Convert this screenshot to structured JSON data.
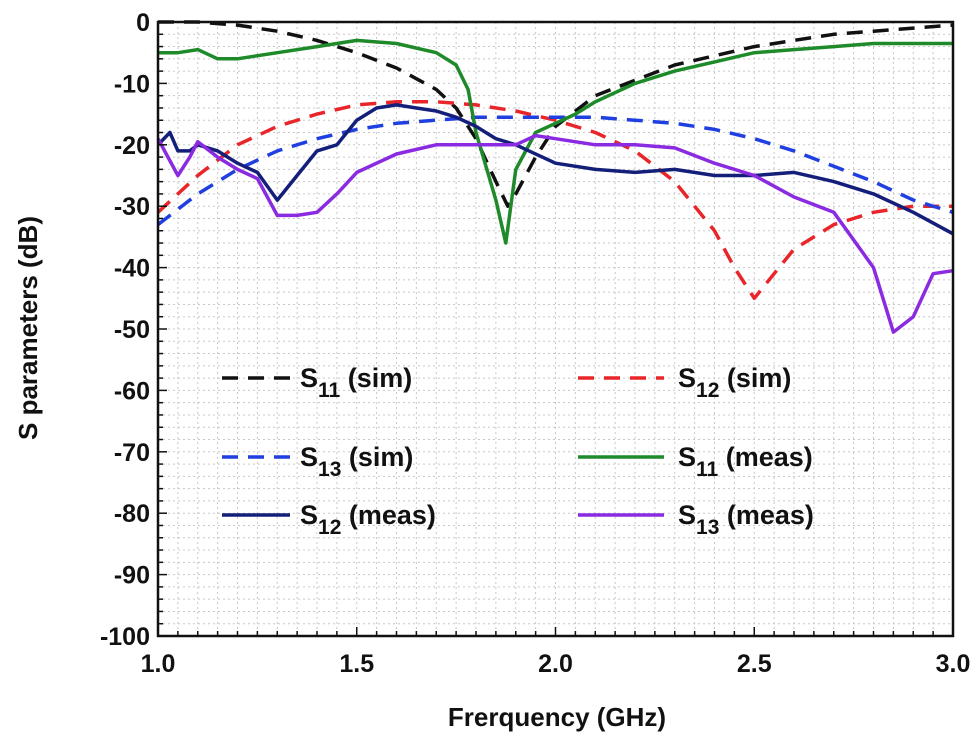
{
  "chart_data": {
    "type": "line",
    "title": "",
    "xlabel": "Frerquency (GHz)",
    "ylabel": "S parameters (dB)",
    "xlim": [
      1.0,
      3.0
    ],
    "ylim": [
      -100,
      0
    ],
    "x_ticks": [
      1.0,
      1.5,
      2.0,
      2.5,
      3.0
    ],
    "x_tick_labels": [
      "1.0",
      "1.5",
      "2.0",
      "2.5",
      "3.0"
    ],
    "y_ticks": [
      0,
      -10,
      -20,
      -30,
      -40,
      -50,
      -60,
      -70,
      -80,
      -90,
      -100
    ],
    "y_tick_labels": [
      "0",
      "-10",
      "-20",
      "-30",
      "-40",
      "-50",
      "-60",
      "-70",
      "-80",
      "-90",
      "-100"
    ],
    "grid": true,
    "legend_position": "center-lower",
    "series": [
      {
        "name": "S11 (sim)",
        "label_main": "S",
        "label_sub": "11",
        "label_tail": " (sim)",
        "color": "#111111",
        "style": "dashed",
        "x": [
          1.0,
          1.1,
          1.2,
          1.3,
          1.4,
          1.5,
          1.6,
          1.7,
          1.75,
          1.8,
          1.85,
          1.88,
          1.9,
          1.95,
          2.0,
          2.1,
          2.2,
          2.3,
          2.4,
          2.5,
          2.6,
          2.7,
          2.8,
          2.9,
          3.0
        ],
        "y": [
          0,
          0,
          -0.5,
          -1.5,
          -3,
          -5,
          -7.5,
          -11,
          -14,
          -19,
          -26,
          -30,
          -28,
          -22,
          -17,
          -12,
          -9.5,
          -7,
          -5.5,
          -4,
          -3,
          -2,
          -1.5,
          -1,
          -0.5
        ]
      },
      {
        "name": "S12 (sim)",
        "label_main": "S",
        "label_sub": "12",
        "label_tail": " (sim)",
        "color": "#e8262a",
        "style": "dashed",
        "x": [
          1.0,
          1.1,
          1.2,
          1.3,
          1.4,
          1.5,
          1.6,
          1.7,
          1.8,
          1.9,
          2.0,
          2.1,
          2.2,
          2.3,
          2.4,
          2.45,
          2.5,
          2.55,
          2.6,
          2.7,
          2.8,
          2.9,
          3.0
        ],
        "y": [
          -31,
          -25,
          -20,
          -17,
          -15,
          -13.5,
          -13,
          -13,
          -13.5,
          -14.5,
          -16,
          -18,
          -21,
          -26,
          -34,
          -40,
          -45,
          -41,
          -37,
          -33,
          -31,
          -30,
          -30
        ]
      },
      {
        "name": "S13 (sim)",
        "label_main": "S",
        "label_sub": "13",
        "label_tail": " (sim)",
        "color": "#1f3fe0",
        "style": "dashed",
        "x": [
          1.0,
          1.1,
          1.2,
          1.3,
          1.4,
          1.5,
          1.6,
          1.7,
          1.8,
          1.9,
          2.0,
          2.1,
          2.2,
          2.3,
          2.4,
          2.5,
          2.6,
          2.7,
          2.8,
          2.9,
          3.0
        ],
        "y": [
          -33,
          -28,
          -24,
          -21,
          -19,
          -17.5,
          -16.5,
          -16,
          -15.5,
          -15.5,
          -15.5,
          -15.5,
          -16,
          -16.5,
          -17.5,
          -19,
          -21,
          -23.5,
          -26,
          -29,
          -31
        ]
      },
      {
        "name": "S11 (meas)",
        "label_main": "S",
        "label_sub": "11",
        "label_tail": " (meas)",
        "color": "#1e8a2a",
        "style": "solid",
        "x": [
          1.0,
          1.05,
          1.1,
          1.15,
          1.2,
          1.3,
          1.4,
          1.5,
          1.6,
          1.7,
          1.75,
          1.78,
          1.8,
          1.85,
          1.875,
          1.9,
          1.95,
          2.0,
          2.05,
          2.1,
          2.2,
          2.3,
          2.4,
          2.5,
          2.6,
          2.7,
          2.8,
          2.9,
          3.0
        ],
        "y": [
          -5,
          -5,
          -4.5,
          -6,
          -6,
          -5,
          -4,
          -3,
          -3.5,
          -5,
          -7,
          -11,
          -18,
          -29,
          -36,
          -24,
          -18,
          -16.5,
          -15,
          -13,
          -10,
          -8,
          -6.5,
          -5,
          -4.5,
          -4,
          -3.5,
          -3.5,
          -3.5
        ]
      },
      {
        "name": "S12 (meas)",
        "label_main": "S",
        "label_sub": "12",
        "label_tail": " (meas)",
        "color": "#141f7a",
        "style": "solid",
        "x": [
          1.0,
          1.03,
          1.05,
          1.08,
          1.1,
          1.15,
          1.2,
          1.25,
          1.3,
          1.35,
          1.4,
          1.45,
          1.5,
          1.55,
          1.6,
          1.65,
          1.7,
          1.75,
          1.8,
          1.85,
          1.9,
          2.0,
          2.1,
          2.2,
          2.3,
          2.4,
          2.5,
          2.6,
          2.7,
          2.8,
          2.9,
          3.0
        ],
        "y": [
          -20,
          -18,
          -21,
          -21,
          -20,
          -21,
          -23,
          -24.5,
          -29,
          -25,
          -21,
          -20,
          -16,
          -14,
          -13.5,
          -14,
          -14.5,
          -15.5,
          -17,
          -19,
          -20,
          -23,
          -24,
          -24.5,
          -24,
          -25,
          -25,
          -24.5,
          -26,
          -28,
          -31,
          -34.5
        ]
      },
      {
        "name": "S13 (meas)",
        "label_main": "S",
        "label_sub": "13",
        "label_tail": " (meas)",
        "color": "#8a2be2",
        "style": "solid",
        "x": [
          1.0,
          1.05,
          1.08,
          1.1,
          1.15,
          1.2,
          1.25,
          1.3,
          1.35,
          1.4,
          1.45,
          1.5,
          1.6,
          1.7,
          1.8,
          1.9,
          1.95,
          2.0,
          2.1,
          2.2,
          2.3,
          2.4,
          2.5,
          2.6,
          2.7,
          2.8,
          2.85,
          2.9,
          2.95,
          3.0
        ],
        "y": [
          -19,
          -25,
          -22,
          -19.5,
          -22,
          -24,
          -25.5,
          -31.5,
          -31.5,
          -31,
          -28,
          -24.5,
          -21.5,
          -20,
          -20,
          -20,
          -18.5,
          -19,
          -20,
          -20,
          -20.5,
          -23,
          -25,
          -28.5,
          -31,
          -40,
          -50.5,
          -48,
          -41,
          -40.5
        ]
      }
    ]
  }
}
